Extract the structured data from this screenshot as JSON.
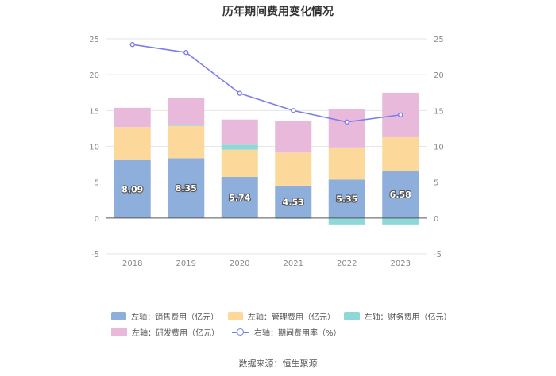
{
  "chart_data": {
    "type": "bar",
    "title": "历年期间费用变化情况",
    "categories": [
      "2018",
      "2019",
      "2020",
      "2021",
      "2022",
      "2023"
    ],
    "y_left": {
      "lim": [
        -5,
        25
      ],
      "ticks": [
        "25",
        "20",
        "15",
        "10",
        "5",
        "0",
        "-5"
      ]
    },
    "y_right": {
      "lim": [
        -5,
        25
      ],
      "ticks": [
        "25",
        "20",
        "15",
        "10",
        "5",
        "0",
        "-5"
      ]
    },
    "series": [
      {
        "name": "左轴：销售费用（亿元）",
        "kind": "bar",
        "color": "#8eaedb",
        "values": [
          8.09,
          8.35,
          5.74,
          4.53,
          5.35,
          6.58
        ],
        "labels": [
          "8.09",
          "8.35",
          "5.74",
          "4.53",
          "5.35",
          "6.58"
        ]
      },
      {
        "name": "左轴：管理费用（亿元）",
        "kind": "bar",
        "color": "#fcd99b",
        "values": [
          4.6,
          4.5,
          3.8,
          4.6,
          4.5,
          4.7
        ]
      },
      {
        "name": "左轴：财务费用（亿元）",
        "kind": "bar",
        "color": "#8ed8d8",
        "values": [
          0.0,
          0.1,
          0.7,
          -0.1,
          -1.0,
          -1.0
        ]
      },
      {
        "name": "左轴：研发费用（亿元）",
        "kind": "bar",
        "color": "#e9b9db",
        "values": [
          2.7,
          3.8,
          3.5,
          4.4,
          5.3,
          6.2
        ]
      },
      {
        "name": "右轴：期间费用率（%）",
        "kind": "line",
        "color": "#7b7fe8",
        "values": [
          24.2,
          23.1,
          17.4,
          15.0,
          13.4,
          14.4
        ]
      }
    ]
  },
  "legend": {
    "sales": "左轴：销售费用（亿元）",
    "admin": "左轴：管理费用（亿元）",
    "finance": "左轴：财务费用（亿元）",
    "rnd": "左轴：研发费用（亿元）",
    "rate": "右轴：期间费用率（%）"
  },
  "source": "数据来源：恒生聚源"
}
